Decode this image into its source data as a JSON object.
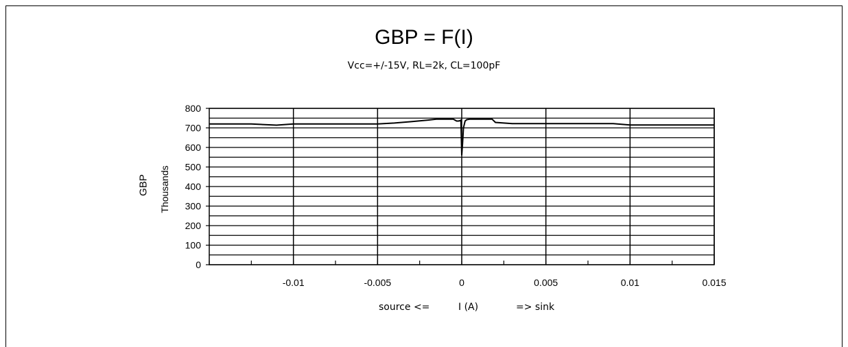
{
  "chart_data": {
    "type": "line",
    "title": "GBP = F(I)",
    "subtitle": "Vcc=+/-15V, RL=2k, CL=100pF",
    "ylabel": "GBP",
    "ylabel_unit": "Thousands",
    "xlabel": {
      "left": "source <=",
      "center": "I (A)",
      "right": "=> sink"
    },
    "xlim": [
      -0.015,
      0.015
    ],
    "ylim": [
      0,
      800
    ],
    "x_ticks": [
      -0.01,
      -0.005,
      0,
      0.005,
      0.01,
      0.015
    ],
    "x_tick_labels": [
      "-0.01",
      "-0.005",
      "0",
      "0.005",
      "0.01",
      "0.015"
    ],
    "y_ticks": [
      0,
      100,
      200,
      300,
      400,
      500,
      600,
      700,
      800
    ],
    "y_tick_labels": [
      "0",
      "100",
      "200",
      "300",
      "400",
      "500",
      "600",
      "700",
      "800"
    ],
    "grid": true,
    "series": [
      {
        "x": [
          -0.015,
          -0.0125,
          -0.011,
          -0.01,
          -0.0075,
          -0.005,
          -0.004,
          -0.003,
          -0.002,
          -0.0015,
          -0.001,
          -0.0005,
          -0.0003,
          -0.0002,
          -0.0001,
          -5e-05,
          0.0,
          5e-05,
          0.0001,
          0.0002,
          0.0003,
          0.0005,
          0.001,
          0.0015,
          0.0018,
          0.002,
          0.003,
          0.005,
          0.0075,
          0.009,
          0.01,
          0.0125,
          0.015
        ],
        "values": [
          720,
          720,
          714,
          720,
          720,
          720,
          725,
          732,
          740,
          745,
          745,
          745,
          735,
          735,
          737,
          740,
          560,
          620,
          700,
          735,
          742,
          745,
          745,
          745,
          745,
          728,
          722,
          722,
          722,
          722,
          715,
          715,
          715
        ]
      }
    ]
  }
}
